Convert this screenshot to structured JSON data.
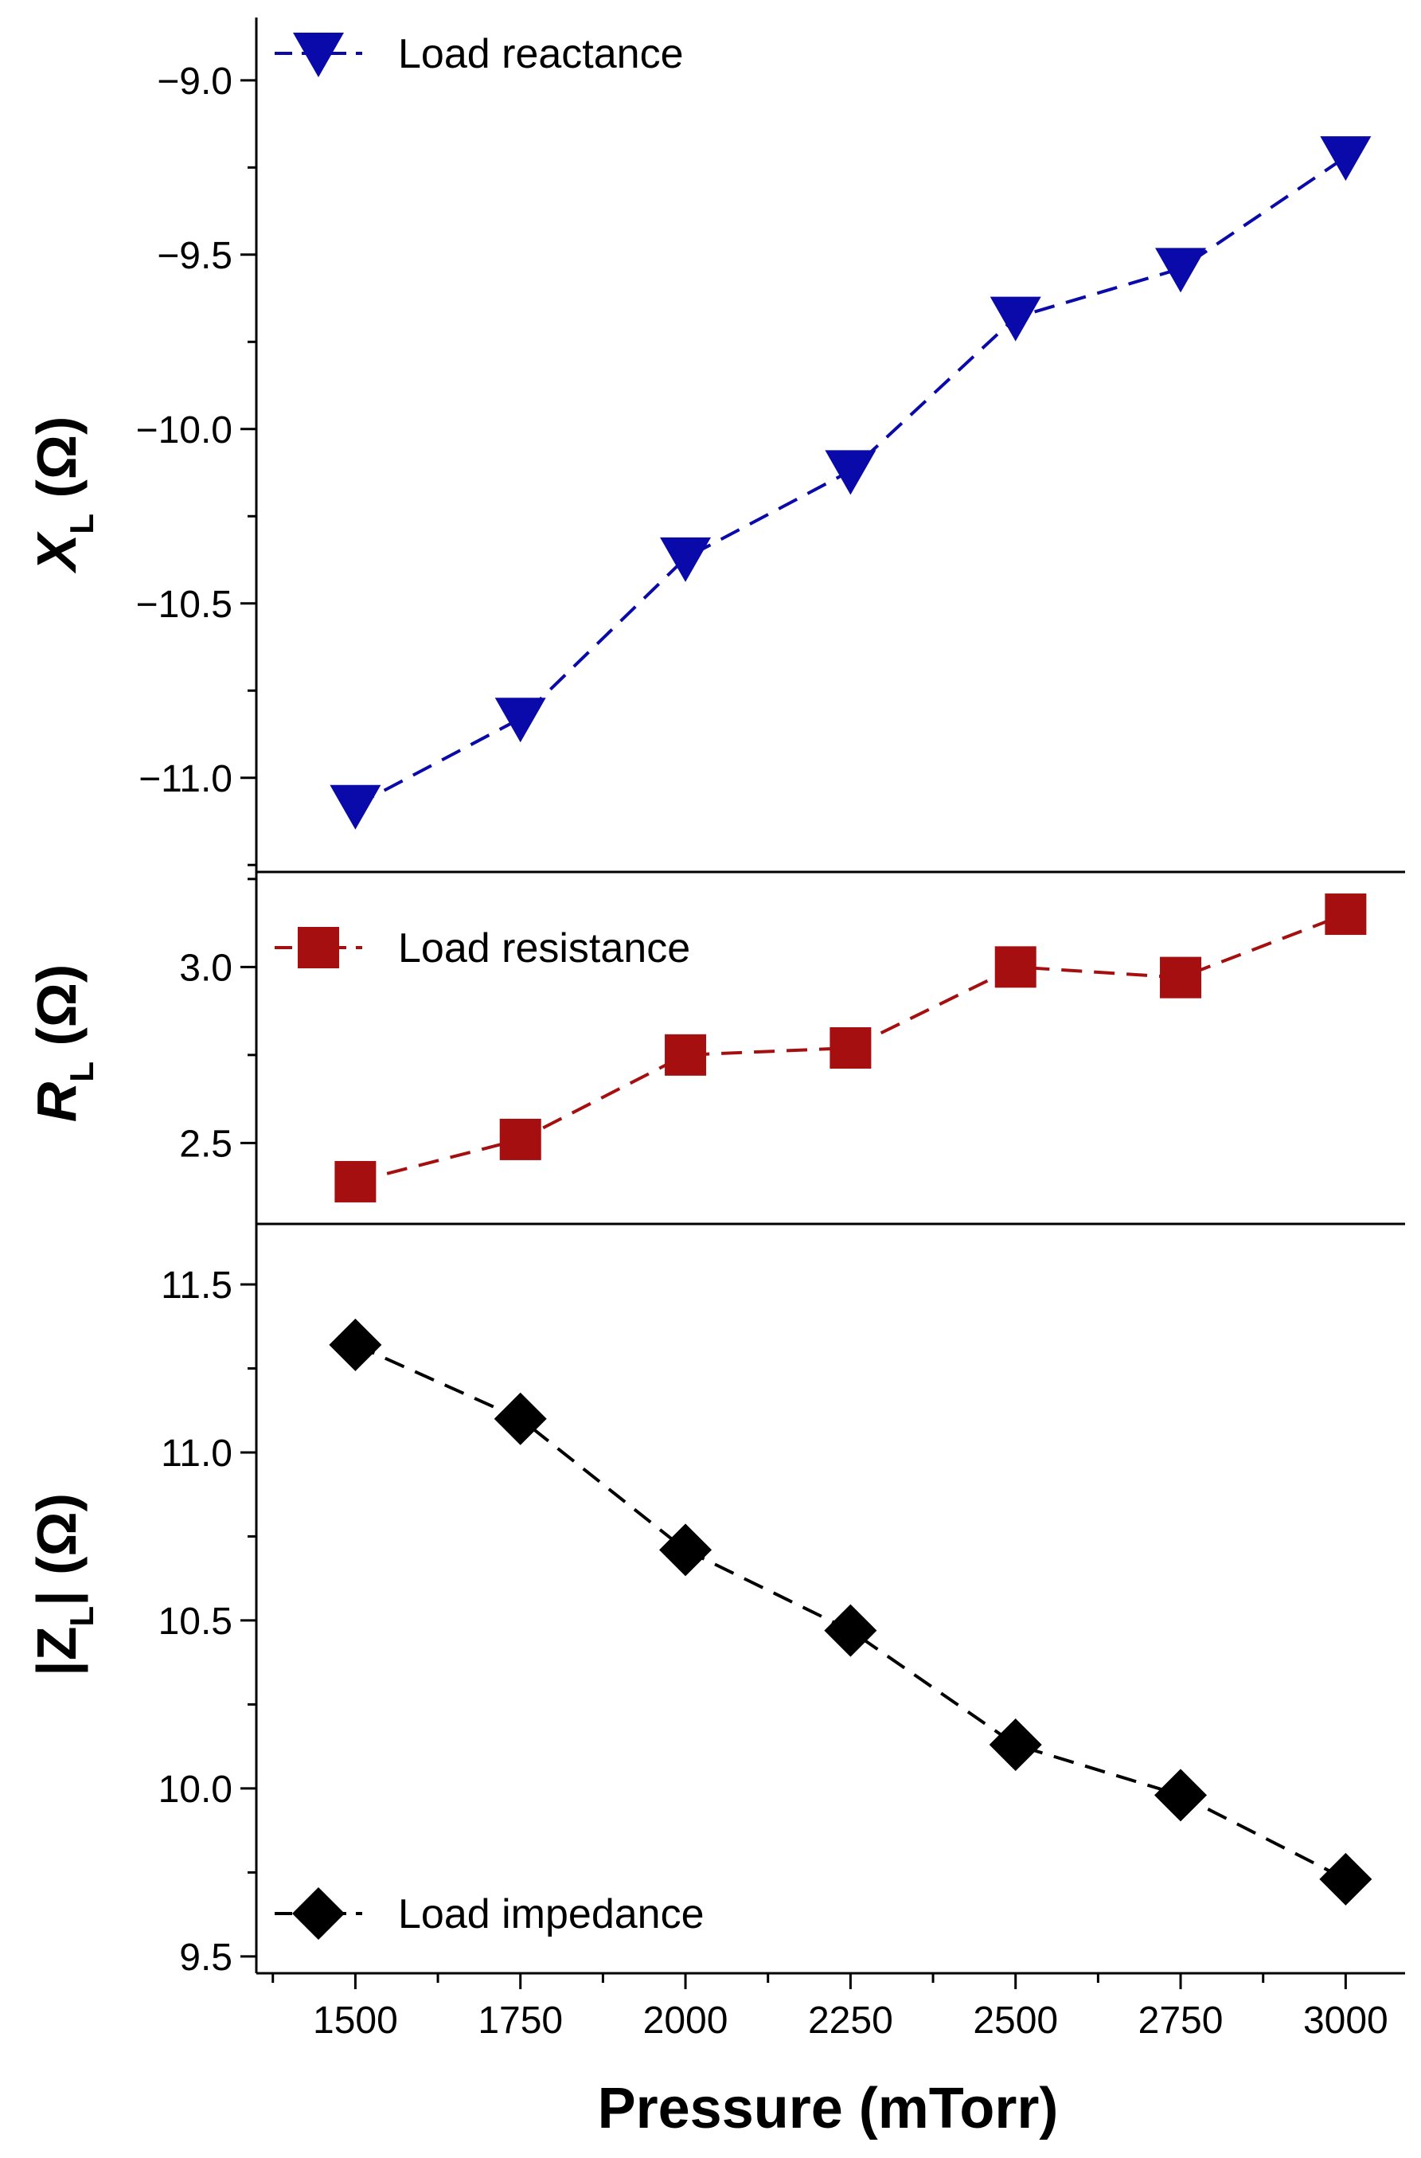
{
  "chart_data": [
    {
      "type": "line",
      "panel": "top",
      "ylabel": {
        "symbol": "X",
        "subscript": "L",
        "unit": " (Ω)"
      },
      "yticks": [
        -11.0,
        -10.5,
        -10.0,
        -9.5,
        -9.0
      ],
      "ytick_labels": [
        "−11.0",
        "−10.5",
        "−10.0",
        "−9.5",
        "−9.0"
      ],
      "ylim": [
        -11.27,
        -8.82
      ],
      "legend_position": "top-left",
      "series": [
        {
          "name": "Load reactance",
          "color": "#0a0aaa",
          "marker": "triangle-down",
          "x": [
            1500,
            1750,
            2000,
            2250,
            2500,
            2750,
            3000
          ],
          "values": [
            -11.08,
            -10.83,
            -10.37,
            -10.12,
            -9.68,
            -9.54,
            -9.22
          ]
        }
      ]
    },
    {
      "type": "line",
      "panel": "middle",
      "ylabel": {
        "symbol": "R",
        "subscript": "L",
        "unit": " (Ω)"
      },
      "yticks": [
        2.5,
        3.0
      ],
      "ytick_labels": [
        "2.5",
        "3.0"
      ],
      "ylim": [
        2.27,
        3.27
      ],
      "legend_position": "top-left",
      "series": [
        {
          "name": "Load resistance",
          "color": "#a50f0f",
          "marker": "square",
          "x": [
            1500,
            1750,
            2000,
            2250,
            2500,
            2750,
            3000
          ],
          "values": [
            2.39,
            2.51,
            2.75,
            2.77,
            3.0,
            2.97,
            3.15
          ]
        }
      ]
    },
    {
      "type": "line",
      "panel": "bottom",
      "ylabel": {
        "symbol": "|Z",
        "subscript": "L",
        "unit": "| (Ω)"
      },
      "yticks": [
        9.5,
        10.0,
        10.5,
        11.0,
        11.5
      ],
      "ytick_labels": [
        "9.5",
        "10.0",
        "10.5",
        "11.0",
        "11.5"
      ],
      "ylim": [
        9.45,
        11.68
      ],
      "legend_position": "bottom-left",
      "series": [
        {
          "name": "Load impedance",
          "color": "#000000",
          "marker": "diamond",
          "x": [
            1500,
            1750,
            2000,
            2250,
            2500,
            2750,
            3000
          ],
          "values": [
            11.32,
            11.1,
            10.71,
            10.47,
            10.13,
            9.98,
            9.73
          ]
        }
      ]
    }
  ],
  "x_axis": {
    "title": "Pressure (mTorr)",
    "ticks": [
      1500,
      1750,
      2000,
      2250,
      2500,
      2750,
      3000
    ],
    "tick_labels": [
      "1500",
      "1750",
      "2000",
      "2250",
      "2500",
      "2750",
      "3000"
    ],
    "xlim": [
      1350,
      3090
    ]
  }
}
